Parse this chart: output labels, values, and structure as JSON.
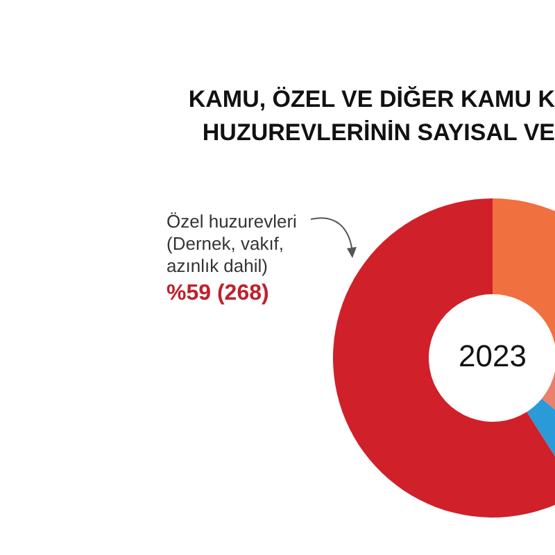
{
  "chart_data": {
    "type": "donut",
    "title": "KAMU, ÖZEL VE DİĞER KAMU K\nHUZUREVLERİNİN SAYISAL VE",
    "subtitle": "2023",
    "categories": [
      null,
      null,
      null,
      "Özel huzurevleri (Dernek, vakıf, azınlık dahil)"
    ],
    "values": [
      28,
      8,
      5,
      59
    ],
    "colors": [
      "#f07040",
      "#e8806a",
      "#2a9ad8",
      "#d0202a"
    ],
    "value_labels": [
      null,
      null,
      null,
      "%59 (268)"
    ],
    "legend": false
  }
}
